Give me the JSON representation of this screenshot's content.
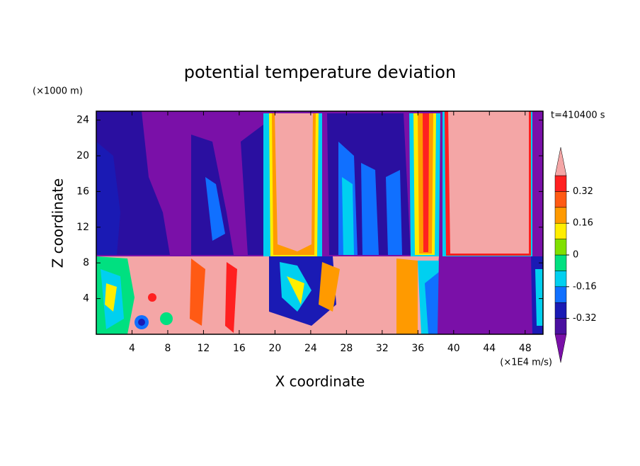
{
  "chart_data": {
    "type": "contour",
    "title": "potential temperature deviation",
    "x_label": "X coordinate",
    "y_label": "Z coordinate",
    "x_unit": "(×1E4 m/s)",
    "y_unit": "(×1000 m)",
    "time_label": "t=410400 s",
    "xlim": [
      0,
      50
    ],
    "xticks": [
      4,
      8,
      12,
      16,
      20,
      24,
      28,
      32,
      36,
      40,
      44,
      48
    ],
    "ylim": [
      0,
      25
    ],
    "yticks": [
      4,
      8,
      12,
      16,
      20,
      24
    ],
    "colorbar": {
      "levels": [
        -0.4,
        -0.32,
        -0.24,
        -0.16,
        -0.08,
        0,
        0.08,
        0.16,
        0.24,
        0.32,
        0.4
      ],
      "colors": [
        "#4a10a0",
        "#1a1ab4",
        "#1070ff",
        "#00d0f0",
        "#00e080",
        "#80e000",
        "#ffee00",
        "#ff9a00",
        "#ff5a14",
        "#ff2020"
      ],
      "under_color": "#7a10a8",
      "over_color": "#f4a6a6",
      "ticks": [
        -0.32,
        -0.16,
        0,
        0.16,
        0.32
      ]
    }
  }
}
